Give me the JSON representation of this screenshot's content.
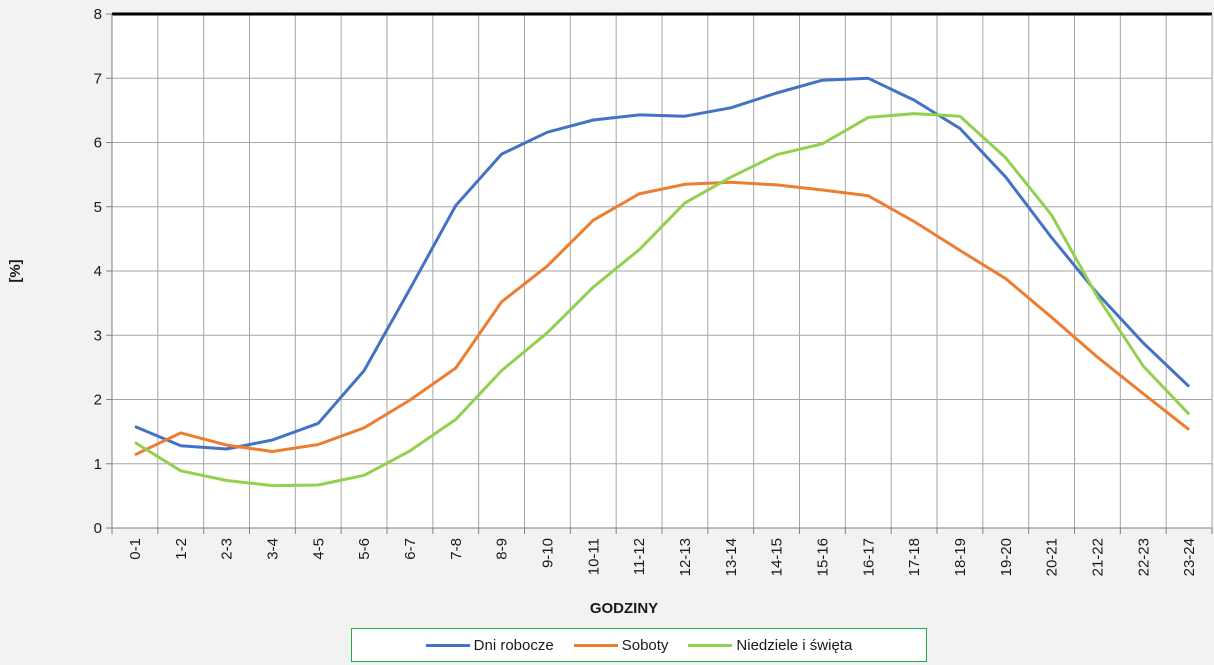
{
  "chart_data": {
    "type": "line",
    "title": "",
    "xlabel": "GODZINY",
    "ylabel": "[%]",
    "ylim": [
      0,
      8
    ],
    "yticks": [
      "0",
      "1",
      "2",
      "3",
      "4",
      "5",
      "6",
      "7",
      "8"
    ],
    "grid": true,
    "legend_position": "bottom",
    "categories": [
      "0-1",
      "1-2",
      "2-3",
      "3-4",
      "4-5",
      "5-6",
      "6-7",
      "7-8",
      "8-9",
      "9-10",
      "10-11",
      "11-12",
      "12-13",
      "13-14",
      "14-15",
      "15-16",
      "16-17",
      "17-18",
      "18-19",
      "19-20",
      "20-21",
      "21-22",
      "22-23",
      "23-24"
    ],
    "series": [
      {
        "name": "Dni robocze",
        "color": "#4472c4",
        "values": [
          1.58,
          1.28,
          1.23,
          1.37,
          1.63,
          2.45,
          3.72,
          5.02,
          5.82,
          6.16,
          6.35,
          6.43,
          6.41,
          6.54,
          6.77,
          6.97,
          7.0,
          6.66,
          6.22,
          5.46,
          4.52,
          3.65,
          2.88,
          2.2
        ]
      },
      {
        "name": "Soboty",
        "color": "#ed7d31",
        "values": [
          1.14,
          1.48,
          1.29,
          1.19,
          1.3,
          1.56,
          1.99,
          2.49,
          3.52,
          4.08,
          4.79,
          5.2,
          5.35,
          5.38,
          5.34,
          5.26,
          5.17,
          4.77,
          4.32,
          3.88,
          3.28,
          2.66,
          2.09,
          1.53
        ]
      },
      {
        "name": "Niedziele i święta",
        "color": "#92d050",
        "values": [
          1.33,
          0.89,
          0.74,
          0.66,
          0.67,
          0.82,
          1.2,
          1.69,
          2.45,
          3.04,
          3.75,
          4.33,
          5.06,
          5.46,
          5.81,
          5.98,
          6.39,
          6.45,
          6.41,
          5.76,
          4.87,
          3.6,
          2.52,
          1.77
        ]
      }
    ]
  }
}
